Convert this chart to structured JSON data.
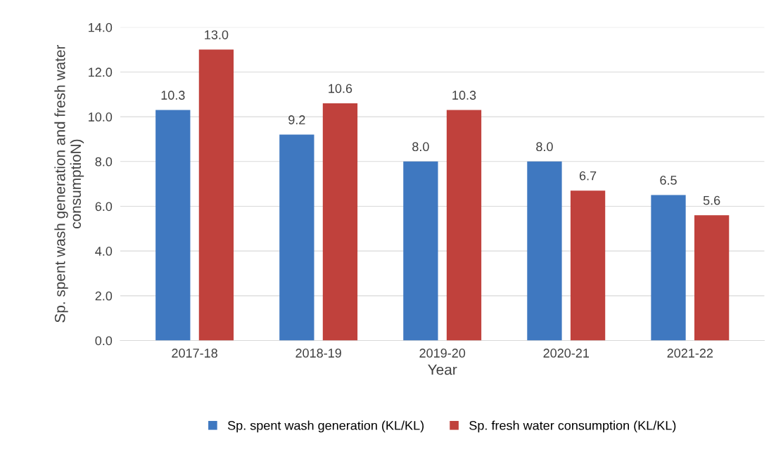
{
  "chart_data": {
    "type": "bar",
    "xlabel": "Year",
    "ylabel": "Sp. spent wash generation and fresh water consumptioN)",
    "categories": [
      "2017-18",
      "2018-19",
      "2019-20",
      "2020-21",
      "2021-22"
    ],
    "series": [
      {
        "name": "Sp. spent wash generation (KL/KL)",
        "color": "#3f78c0",
        "values": [
          10.3,
          9.2,
          8.0,
          8.0,
          6.5
        ],
        "value_labels": [
          "10.3",
          "9.2",
          "8.0",
          "8.0",
          "6.5"
        ]
      },
      {
        "name": "Sp. fresh water consumption (KL/KL)",
        "color": "#c0413c",
        "values": [
          13.0,
          10.6,
          10.3,
          6.7,
          5.6
        ],
        "value_labels": [
          "13.0",
          "10.6",
          "10.3",
          "6.7",
          "5.6"
        ]
      }
    ],
    "ylim": [
      0,
      14
    ],
    "yticks": [
      {
        "value": 0,
        "label": "0.0"
      },
      {
        "value": 2,
        "label": "2.0"
      },
      {
        "value": 4,
        "label": "4.0"
      },
      {
        "value": 6,
        "label": "6.0"
      },
      {
        "value": 8,
        "label": "8.0"
      },
      {
        "value": 10,
        "label": "10.0"
      },
      {
        "value": 12,
        "label": "12.0"
      },
      {
        "value": 14,
        "label": "14.0"
      }
    ],
    "grid": "y",
    "legend": "bottom"
  }
}
